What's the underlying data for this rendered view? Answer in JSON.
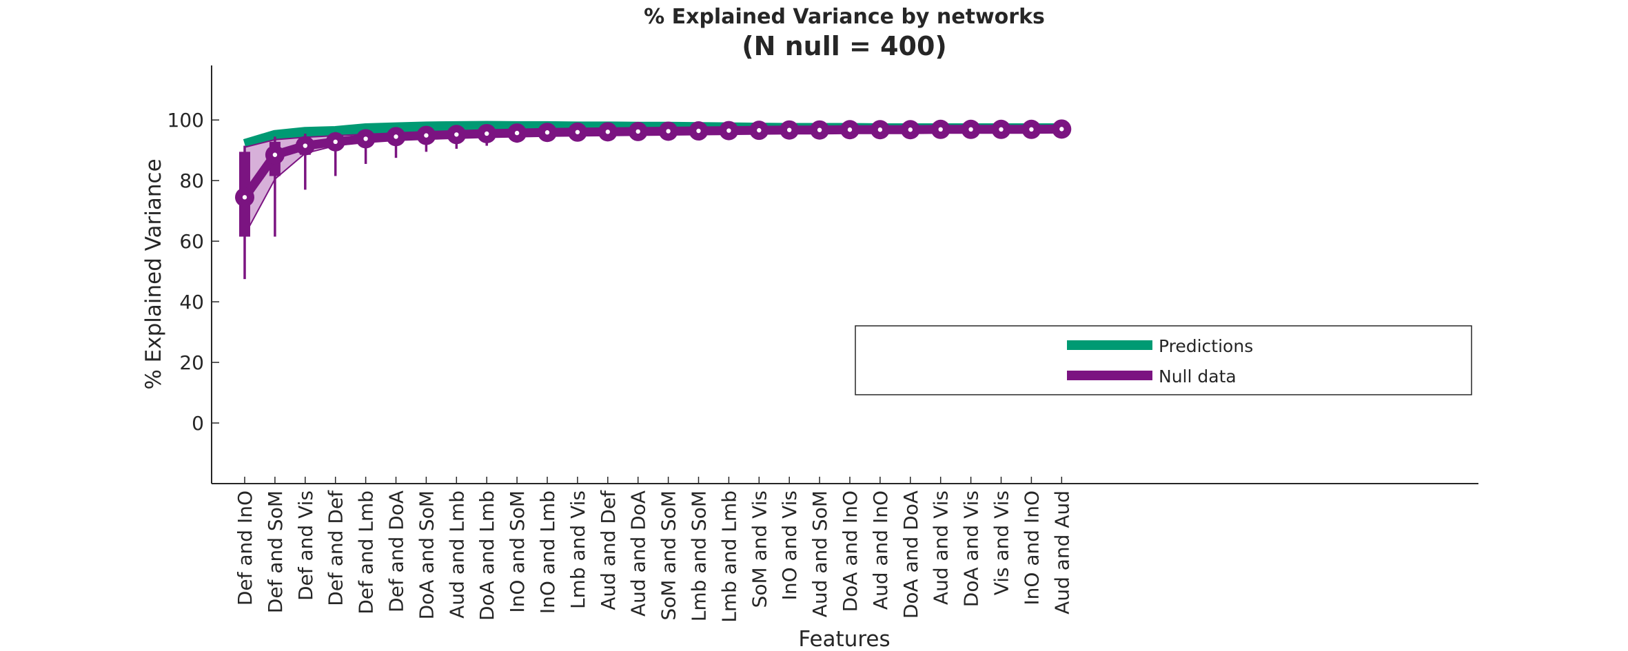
{
  "chart_data": {
    "type": "line",
    "title": "% Explained Variance by networks",
    "subtitle": "(N null = 400)",
    "xlabel": "Features",
    "ylabel": "% Explained Variance",
    "ylim": [
      -20,
      118
    ],
    "yticks": [
      0,
      20,
      40,
      60,
      80,
      100
    ],
    "grid": false,
    "legend_position": "middle-right",
    "categories": [
      "Def and InO",
      "Def and SoM",
      "Def and Vis",
      "Def and Def",
      "Def and Lmb",
      "Def and DoA",
      "DoA and SoM",
      "Aud and Lmb",
      "DoA and Lmb",
      "InO and SoM",
      "InO and Lmb",
      "Lmb and Vis",
      "Aud and Def",
      "Aud and DoA",
      "SoM and SoM",
      "Lmb and SoM",
      "Lmb and Lmb",
      "SoM and Vis",
      "InO and Vis",
      "Aud and SoM",
      "DoA and InO",
      "Aud and InO",
      "DoA and DoA",
      "Aud and Vis",
      "DoA and Vis",
      "Vis and Vis",
      "InO and InO",
      "Aud and Aud"
    ],
    "series": [
      {
        "name": "Predictions",
        "color": "#009a73",
        "values": [
          92.0,
          95.0,
          96.0,
          96.3,
          97.2,
          97.5,
          97.8,
          97.9,
          98.0,
          97.9,
          97.9,
          97.8,
          97.8,
          97.7,
          97.7,
          97.6,
          97.5,
          97.4,
          97.3,
          97.3,
          97.3,
          97.2,
          97.2,
          97.2,
          97.2,
          97.2,
          97.2,
          97.2
        ]
      },
      {
        "name": "Null data",
        "color": "#7b1481",
        "median": [
          74.5,
          88.5,
          91.5,
          92.8,
          93.8,
          94.5,
          94.9,
          95.2,
          95.5,
          95.7,
          95.9,
          96.0,
          96.1,
          96.2,
          96.3,
          96.4,
          96.5,
          96.6,
          96.7,
          96.7,
          96.8,
          96.8,
          96.8,
          96.9,
          96.9,
          96.9,
          96.9,
          97.0
        ],
        "q1": [
          61.5,
          81.5,
          88.5,
          91.0,
          92.5,
          93.5,
          94.2,
          94.6,
          95.0,
          95.3,
          95.5,
          95.7,
          95.8,
          95.9,
          96.0,
          96.1,
          96.2,
          96.3,
          96.4,
          96.4,
          96.5,
          96.5,
          96.6,
          96.6,
          96.6,
          96.7,
          96.7,
          96.8
        ],
        "q3": [
          89.5,
          92.8,
          93.5,
          94.2,
          94.8,
          95.3,
          95.6,
          95.8,
          96.0,
          96.1,
          96.2,
          96.3,
          96.4,
          96.5,
          96.6,
          96.6,
          96.7,
          96.8,
          96.8,
          96.9,
          96.9,
          97.0,
          97.0,
          97.0,
          97.0,
          97.1,
          97.1,
          97.1
        ],
        "min": [
          47.5,
          61.5,
          77.0,
          81.5,
          85.5,
          87.5,
          89.5,
          90.5,
          91.5,
          92.5,
          93.0,
          93.5,
          94.0,
          94.3,
          94.6,
          94.8,
          95.0,
          95.2,
          95.4,
          95.5,
          95.6,
          95.7,
          95.8,
          95.9,
          96.0,
          96.1,
          96.2,
          96.3
        ],
        "max": [
          91.5,
          94.5,
          95.5,
          96.0,
          96.5,
          96.8,
          97.0,
          97.2,
          97.3,
          97.4,
          97.4,
          97.5,
          97.5,
          97.5,
          97.6,
          97.6,
          97.6,
          97.6,
          97.6,
          97.6,
          97.6,
          97.6,
          97.6,
          97.6,
          97.6,
          97.6,
          97.6,
          97.6
        ],
        "band_low": [
          62.0,
          80.5,
          89.0,
          91.5,
          92.7,
          93.6,
          94.3,
          94.7,
          95.1,
          95.4,
          95.6,
          95.8,
          95.9,
          96.0,
          96.1,
          96.2,
          96.3,
          96.4,
          96.5,
          96.5,
          96.6,
          96.6,
          96.7,
          96.7,
          96.7,
          96.8,
          96.8,
          96.8
        ],
        "band_high": [
          91.0,
          93.5,
          94.3,
          94.8,
          95.3,
          95.7,
          96.0,
          96.2,
          96.4,
          96.5,
          96.6,
          96.7,
          96.8,
          96.8,
          96.9,
          96.9,
          97.0,
          97.0,
          97.0,
          97.1,
          97.1,
          97.1,
          97.1,
          97.1,
          97.2,
          97.2,
          97.2,
          97.2
        ]
      }
    ]
  }
}
